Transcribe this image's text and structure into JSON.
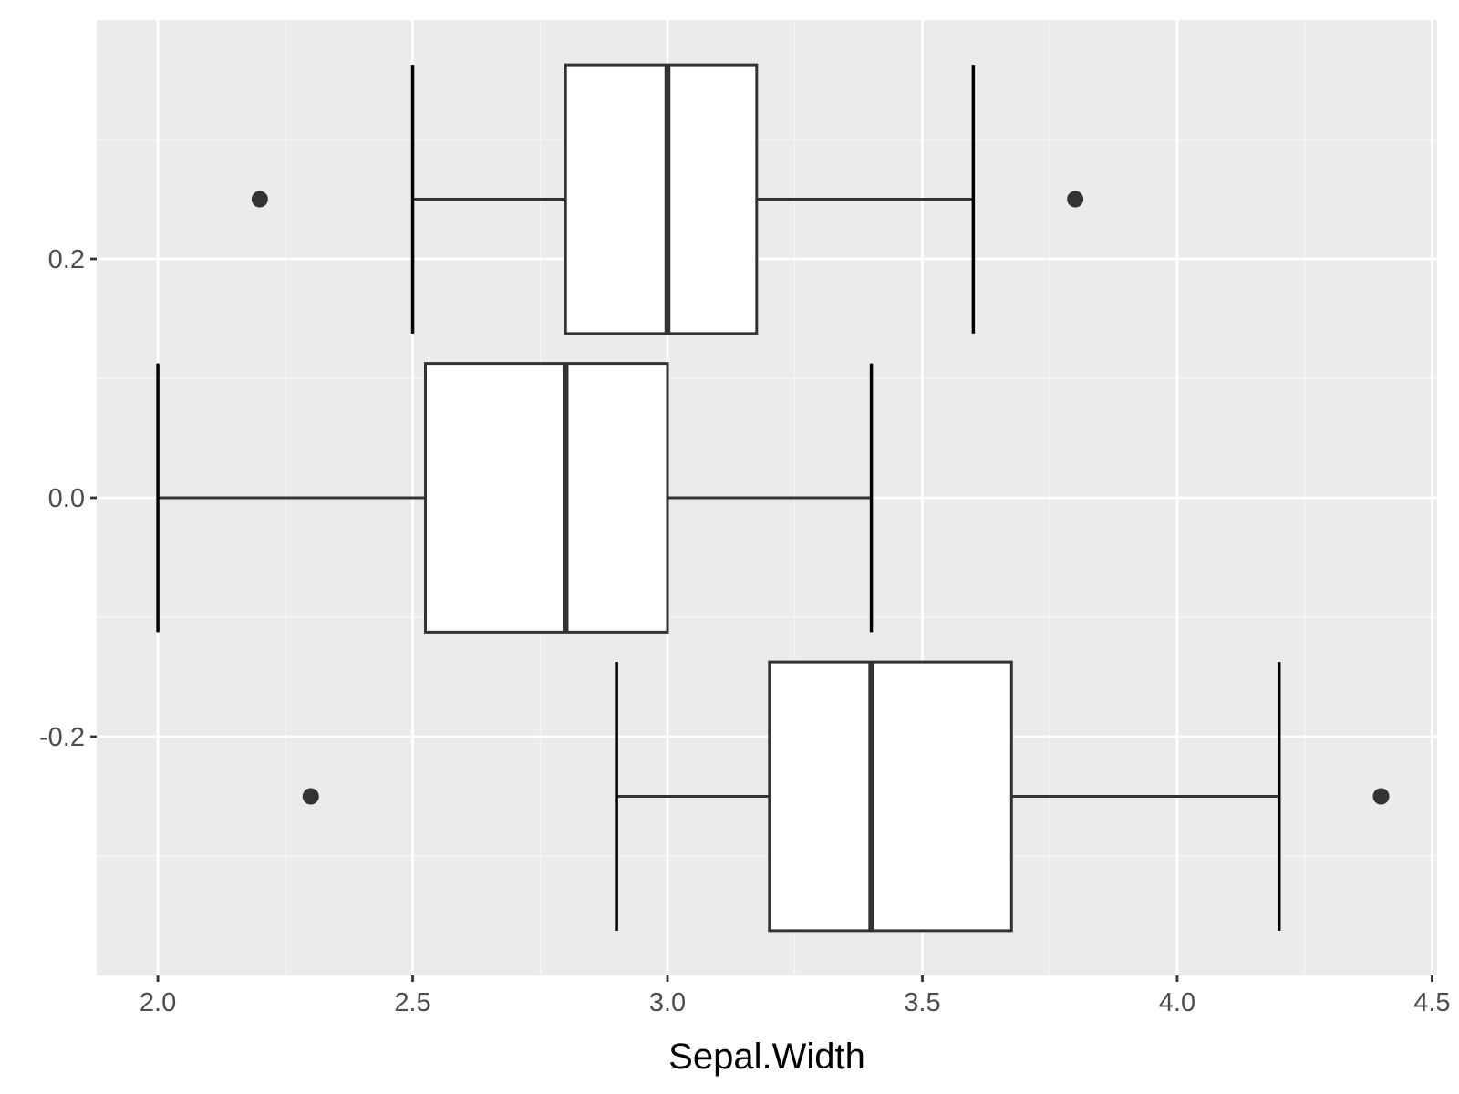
{
  "chart_data": {
    "type": "boxplot",
    "orientation": "horizontal",
    "title": "",
    "xlabel": "Sepal.Width",
    "ylabel": "",
    "xlim": [
      1.88,
      4.51
    ],
    "ylim": [
      -0.4,
      0.4
    ],
    "x_ticks": [
      2.0,
      2.5,
      3.0,
      3.5,
      4.0,
      4.5
    ],
    "x_tick_labels": [
      "2.0",
      "2.5",
      "3.0",
      "3.5",
      "4.0",
      "4.5"
    ],
    "x_minor_ticks": [
      2.25,
      2.75,
      3.25,
      3.75,
      4.25
    ],
    "y_ticks": [
      0.2,
      0.0,
      -0.2
    ],
    "y_tick_labels": [
      "0.2",
      "0.0",
      "-0.2"
    ],
    "y_minor_ticks": [
      0.3,
      0.1,
      -0.1,
      -0.3
    ],
    "grid": true,
    "colors": {
      "panel_background": "#ebebeb",
      "grid_major": "#ffffff",
      "grid_minor": "#f5f5f5",
      "box_fill": "#ffffff",
      "box_outline": "#333333",
      "whisker_end": "#000000",
      "outlier": "#333333"
    },
    "boxes": [
      {
        "y_center": 0.25,
        "y_top": 0.3625,
        "y_bottom": 0.1375,
        "whisker_low": 2.5,
        "q1": 2.8,
        "median": 3.0,
        "q3": 3.175,
        "whisker_high": 3.6,
        "outliers": [
          2.2,
          3.8
        ]
      },
      {
        "y_center": 0.0,
        "y_top": 0.1125,
        "y_bottom": -0.1125,
        "whisker_low": 2.0,
        "q1": 2.525,
        "median": 2.8,
        "q3": 3.0,
        "whisker_high": 3.4,
        "outliers": []
      },
      {
        "y_center": -0.25,
        "y_top": -0.1375,
        "y_bottom": -0.3625,
        "whisker_low": 2.9,
        "q1": 3.2,
        "median": 3.4,
        "q3": 3.675,
        "whisker_high": 4.2,
        "outliers": [
          2.3,
          4.4
        ]
      }
    ]
  }
}
